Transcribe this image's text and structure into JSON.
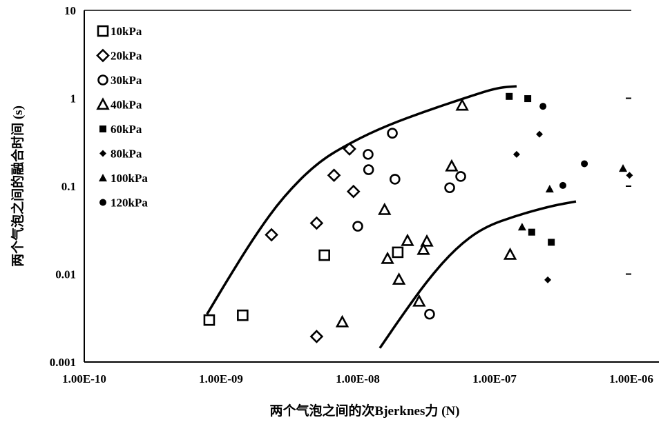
{
  "chart_data": {
    "type": "scatter",
    "title": "",
    "xlabel": "两个气泡之间的次Bjerknes力 (N)",
    "ylabel": "两个气泡之间的融合时间 (s)",
    "xscale": "log",
    "yscale": "log",
    "xlim": [
      1e-10,
      1e-06
    ],
    "ylim": [
      0.001,
      10
    ],
    "x_tick_labels": [
      "1.00E-10",
      "1.00E-09",
      "1.00E-08",
      "1.00E-07",
      "1.00E-06"
    ],
    "x_ticks": [
      1e-10,
      1e-09,
      1e-08,
      1e-07,
      1e-06
    ],
    "y_tick_labels": [
      "0.001",
      "0.01",
      "0.1",
      "1",
      "10"
    ],
    "y_ticks": [
      0.001,
      0.01,
      0.1,
      1,
      10
    ],
    "grid": false,
    "legend_position": "top-left",
    "series": [
      {
        "name": "10kPa",
        "marker": "square-open",
        "points": [
          [
            8.2e-10,
            0.003
          ],
          [
            1.44e-09,
            0.0034
          ],
          [
            5.7e-09,
            0.0164
          ],
          [
            1.96e-08,
            0.0177
          ]
        ]
      },
      {
        "name": "20kPa",
        "marker": "diamond-open",
        "points": [
          [
            2.34e-09,
            0.028
          ],
          [
            5e-09,
            0.038
          ],
          [
            6.7e-09,
            0.133
          ],
          [
            8.7e-09,
            0.265
          ],
          [
            9.3e-09,
            0.087
          ],
          [
            5e-09,
            0.00195
          ]
        ]
      },
      {
        "name": "30kPa",
        "marker": "circle-open",
        "points": [
          [
            1.79e-08,
            0.4
          ],
          [
            1.19e-08,
            0.23
          ],
          [
            1.2e-08,
            0.154
          ],
          [
            1.87e-08,
            0.12
          ],
          [
            1e-08,
            0.035
          ],
          [
            4.7e-08,
            0.096
          ],
          [
            5.66e-08,
            0.129
          ],
          [
            3.35e-08,
            0.0035
          ]
        ]
      },
      {
        "name": "40kPa",
        "marker": "triangle-open",
        "points": [
          [
            5.8e-08,
            0.83
          ],
          [
            4.86e-08,
            0.169
          ],
          [
            1.57e-08,
            0.054
          ],
          [
            1.65e-08,
            0.015
          ],
          [
            2.31e-08,
            0.024
          ],
          [
            3.2e-08,
            0.0236
          ],
          [
            3.02e-08,
            0.019
          ],
          [
            2e-08,
            0.0087
          ],
          [
            2.81e-08,
            0.0049
          ],
          [
            7.7e-09,
            0.00285
          ],
          [
            1.3e-07,
            0.0167
          ]
        ]
      },
      {
        "name": "60kPa",
        "marker": "square-filled",
        "points": [
          [
            1.28e-07,
            1.05
          ],
          [
            1.75e-07,
            0.99
          ],
          [
            1.87e-07,
            0.03
          ],
          [
            2.6e-07,
            0.023
          ]
        ]
      },
      {
        "name": "80kPa",
        "marker": "diamond-filled",
        "points": [
          [
            2.13e-07,
            0.39
          ],
          [
            1.45e-07,
            0.23
          ],
          [
            2.45e-07,
            0.0086
          ],
          [
            9.7e-07,
            0.133
          ]
        ]
      },
      {
        "name": "100kPa",
        "marker": "triangle-filled",
        "points": [
          [
            1.59e-07,
            0.0344
          ],
          [
            2.53e-07,
            0.093
          ],
          [
            8.7e-07,
            0.16
          ]
        ]
      },
      {
        "name": "120kPa",
        "marker": "circle-filled",
        "points": [
          [
            2.26e-07,
            0.81
          ],
          [
            4.54e-07,
            0.18
          ],
          [
            3.16e-07,
            0.102
          ]
        ]
      }
    ],
    "curves": [
      {
        "points": [
          [
            7.9e-10,
            0.0035
          ],
          [
            1.12e-09,
            0.0087
          ],
          [
            1.79e-09,
            0.028
          ],
          [
            2.85e-09,
            0.076
          ],
          [
            5.1e-09,
            0.188
          ],
          [
            9.1e-09,
            0.32
          ],
          [
            1.63e-08,
            0.49
          ],
          [
            3.27e-08,
            0.73
          ],
          [
            6.6e-08,
            1.05
          ],
          [
            1.05e-07,
            1.32
          ],
          [
            1.45e-07,
            1.37
          ]
        ]
      },
      {
        "points": [
          [
            1.45e-08,
            0.00144
          ],
          [
            2.06e-08,
            0.0032
          ],
          [
            3.27e-08,
            0.0087
          ],
          [
            5.2e-08,
            0.0197
          ],
          [
            8.3e-08,
            0.034
          ],
          [
            1.49e-07,
            0.047
          ],
          [
            2.65e-07,
            0.06
          ],
          [
            3.94e-07,
            0.067
          ]
        ]
      }
    ]
  }
}
